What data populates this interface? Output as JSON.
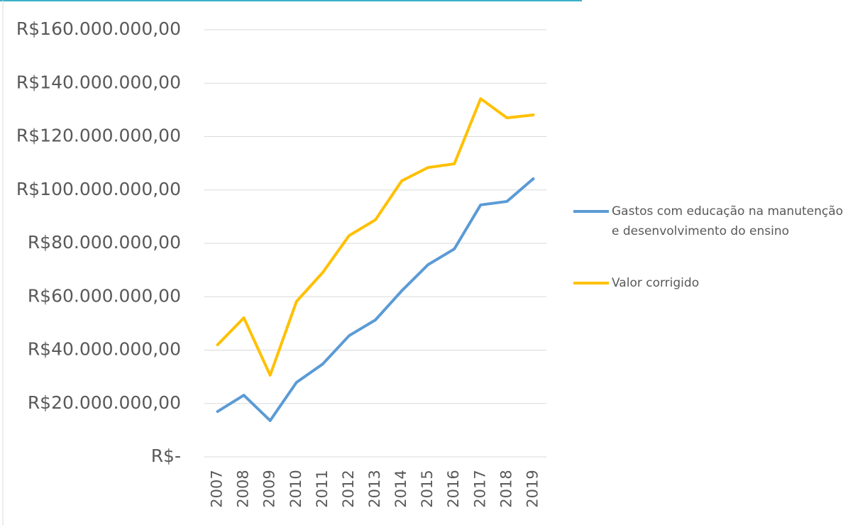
{
  "chart_data": {
    "type": "line",
    "categories": [
      "2007",
      "2008",
      "2009",
      "2010",
      "2011",
      "2012",
      "2013",
      "2014",
      "2015",
      "2016",
      "2017",
      "2018",
      "2019"
    ],
    "series": [
      {
        "name": "Gastos com educação na manutenção e desenvolvimento do ensino",
        "color": "#5b9bd5",
        "values": [
          17000000,
          23100000,
          13600000,
          27900000,
          34800000,
          45400000,
          51300000,
          62200000,
          72000000,
          77900000,
          94400000,
          95700000,
          104200000
        ]
      },
      {
        "name": "Valor corrigido",
        "color": "#ffc000",
        "values": [
          42000000,
          52100000,
          30600000,
          58200000,
          69100000,
          82900000,
          88800000,
          103400000,
          108400000,
          109800000,
          134200000,
          127000000,
          128100000
        ]
      }
    ],
    "ylim": [
      0,
      160000000
    ],
    "yticks": [
      {
        "value": 0,
        "label": "R$-"
      },
      {
        "value": 20000000,
        "label": "R$20.000.000,00"
      },
      {
        "value": 40000000,
        "label": "R$40.000.000,00"
      },
      {
        "value": 60000000,
        "label": "R$60.000.000,00"
      },
      {
        "value": 80000000,
        "label": "R$80.000.000,00"
      },
      {
        "value": 100000000,
        "label": "R$100.000.000,00"
      },
      {
        "value": 120000000,
        "label": "R$120.000.000,00"
      },
      {
        "value": 140000000,
        "label": "R$140.000.000,00"
      },
      {
        "value": 160000000,
        "label": "R$160.000.000,00"
      }
    ],
    "grid": true
  }
}
